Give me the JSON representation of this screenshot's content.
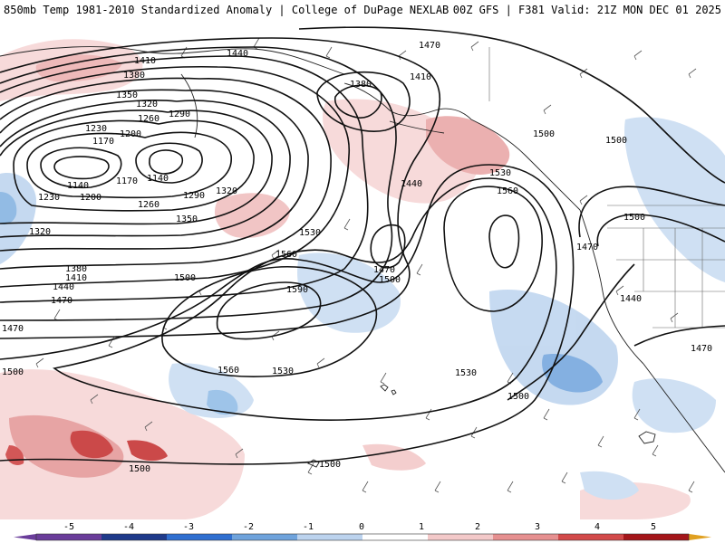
{
  "header": {
    "title_left": "850mb Temp 1981-2010 Standardized Anomaly | College of DuPage NEXLAB",
    "title_right": "00Z GFS | F381 Valid: 21Z MON DEC 01 2025"
  },
  "colorbar": {
    "ticks": [
      "-5",
      "-4",
      "-3",
      "-2",
      "-1",
      "0",
      "1",
      "2",
      "3",
      "4",
      "5"
    ],
    "colors": [
      "#6a3d9a",
      "#1f3a8a",
      "#2f6fd0",
      "#6fa3dc",
      "#bcd3ee",
      "#ffffff",
      "#f3c9c9",
      "#e69090",
      "#d24a4a",
      "#a4161a",
      "#e0a020"
    ]
  },
  "contour_labels": [
    "1470",
    "1440",
    "1410",
    "1380",
    "1350",
    "1320",
    "1290",
    "1260",
    "1230",
    "1200",
    "1170",
    "1140",
    "1500",
    "1530",
    "1560",
    "1590"
  ],
  "map_labels": [
    {
      "id": "l1470a",
      "text": "1470"
    },
    {
      "id": "l1440a",
      "text": "1440"
    },
    {
      "id": "l1410a",
      "text": "1410"
    },
    {
      "id": "l1380a",
      "text": "1380"
    },
    {
      "id": "l1350a",
      "text": "1350"
    },
    {
      "id": "l1320a",
      "text": "1320"
    },
    {
      "id": "l1290a",
      "text": "1290"
    },
    {
      "id": "l1260a",
      "text": "1260"
    },
    {
      "id": "l1230a",
      "text": "1230"
    },
    {
      "id": "l1200a",
      "text": "1200"
    },
    {
      "id": "l1170a",
      "text": "1170"
    },
    {
      "id": "l1140a",
      "text": "1140"
    },
    {
      "id": "l1140b",
      "text": "1140"
    },
    {
      "id": "l1170b",
      "text": "1170"
    },
    {
      "id": "l1200b",
      "text": "1200"
    },
    {
      "id": "l1230b",
      "text": "1230"
    },
    {
      "id": "l1260b",
      "text": "1260"
    },
    {
      "id": "l1290b",
      "text": "1290"
    },
    {
      "id": "l1320b",
      "text": "1320"
    },
    {
      "id": "l1350b",
      "text": "1350"
    },
    {
      "id": "l1320c",
      "text": "1320"
    },
    {
      "id": "l1380b",
      "text": "1380"
    },
    {
      "id": "l1410b",
      "text": "1410"
    },
    {
      "id": "l1440b",
      "text": "1440"
    },
    {
      "id": "l1470b",
      "text": "1470"
    },
    {
      "id": "l1500a",
      "text": "1500"
    },
    {
      "id": "l1530a",
      "text": "1530"
    },
    {
      "id": "l1560a",
      "text": "1560"
    },
    {
      "id": "l1590a",
      "text": "1590"
    },
    {
      "id": "l1560b",
      "text": "1560"
    },
    {
      "id": "l1530b",
      "text": "1530"
    },
    {
      "id": "l1440c",
      "text": "1440"
    },
    {
      "id": "l1470c",
      "text": "1470"
    },
    {
      "id": "l1500b",
      "text": "1500"
    },
    {
      "id": "l1530c",
      "text": "1530"
    },
    {
      "id": "l1560c",
      "text": "1560"
    },
    {
      "id": "l1530d",
      "text": "1530"
    },
    {
      "id": "l1500c",
      "text": "1500"
    },
    {
      "id": "l1500d",
      "text": "1500"
    },
    {
      "id": "l1500e",
      "text": "1500"
    },
    {
      "id": "l1500f",
      "text": "1500"
    },
    {
      "id": "l1470d",
      "text": "1470"
    },
    {
      "id": "l1440d",
      "text": "1440"
    },
    {
      "id": "l1470e",
      "text": "1470"
    },
    {
      "id": "l1500g",
      "text": "1500"
    },
    {
      "id": "l1500h",
      "text": "1500"
    },
    {
      "id": "l1380c",
      "text": "1380"
    },
    {
      "id": "l1410c",
      "text": "1410"
    },
    {
      "id": "l1470f",
      "text": "1470"
    },
    {
      "id": "l1500i",
      "text": "1500"
    }
  ]
}
